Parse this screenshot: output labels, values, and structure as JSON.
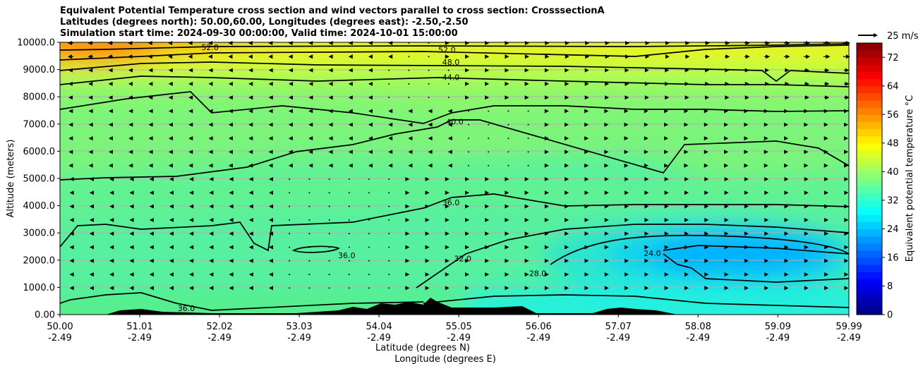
{
  "title_lines": [
    "Equivalent Potential Temperature cross section and wind vectors parallel to cross section: CrosssectionA",
    "Latitudes (degrees north): 50.00,60.00, Longitudes (degrees east): -2.50,-2.50",
    "Simulation start time: 2024-09-30 00:00:00, Valid time: 2024-10-01 15:00:00"
  ],
  "chart_data": {
    "type": "heatmap",
    "subtype": "vertical cross-section filled contour with contour lines and wind vectors",
    "ylabel": "Altitude (meters)",
    "xlabel_lines": [
      "Latitude (degrees N)",
      "Longitude (degrees E)"
    ],
    "y_ticks": [
      0,
      1000,
      2000,
      3000,
      4000,
      5000,
      6000,
      7000,
      8000,
      9000,
      10000
    ],
    "y_tick_labels": [
      "0.00",
      "1000.0",
      "2000.0",
      "3000.0",
      "4000.0",
      "5000.0",
      "6000.0",
      "7000.0",
      "8000.0",
      "9000.0",
      "10000.0"
    ],
    "ylim": [
      0,
      10000
    ],
    "xlim": [
      50.0,
      59.99
    ],
    "x_ticks": [
      50.0,
      51.01,
      52.02,
      53.03,
      54.04,
      55.05,
      56.06,
      57.07,
      58.08,
      59.09,
      59.99
    ],
    "x_tick_labels_lat": [
      "50.00",
      "51.01",
      "52.02",
      "53.03",
      "54.04",
      "55.05",
      "56.06",
      "57.07",
      "58.08",
      "59.09",
      "59.99"
    ],
    "x_tick_labels_lon": [
      "-2.49",
      "-2.49",
      "-2.49",
      "-2.49",
      "-2.49",
      "-2.49",
      "-2.49",
      "-2.49",
      "-2.49",
      "-2.49",
      "-2.49"
    ],
    "horizontal_grid": true,
    "colorbar": {
      "label": "Equivalent potential temperature $^\\circ$C",
      "ticks": [
        0,
        8,
        16,
        24,
        32,
        40,
        48,
        56,
        64,
        72
      ],
      "range": [
        0,
        76
      ],
      "colormap": "jet"
    },
    "contour_labels": [
      {
        "text": "52.0",
        "lat": 51.9,
        "alt": 9820
      },
      {
        "text": "52.0",
        "lat": 54.9,
        "alt": 9730
      },
      {
        "text": "48.0",
        "lat": 54.95,
        "alt": 9280
      },
      {
        "text": "44.0",
        "lat": 54.95,
        "alt": 8720
      },
      {
        "text": "40.0",
        "lat": 55.0,
        "alt": 7080
      },
      {
        "text": "36.0",
        "lat": 54.95,
        "alt": 4120
      },
      {
        "text": "36.0",
        "lat": 53.63,
        "alt": 2180
      },
      {
        "text": "36.0",
        "lat": 51.6,
        "alt": 230
      },
      {
        "text": "32.0",
        "lat": 55.1,
        "alt": 2060
      },
      {
        "text": "28.0",
        "lat": 56.05,
        "alt": 1520
      },
      {
        "text": "24.0",
        "lat": 57.5,
        "alt": 2250
      }
    ],
    "wind_reference": {
      "label": "25 m/s"
    },
    "terrain_peak_alt": 600
  }
}
